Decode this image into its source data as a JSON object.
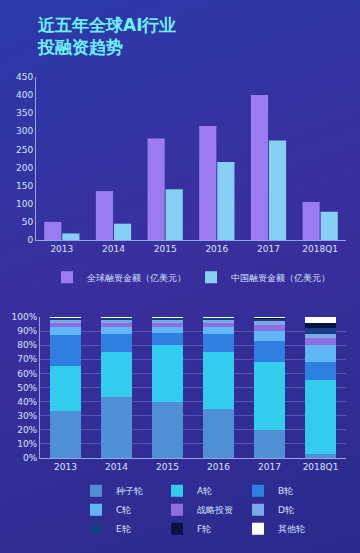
{
  "chart_data": [
    {
      "type": "bar",
      "title": "近五年全球AI行业投融资趋势",
      "categories": [
        "2013",
        "2014",
        "2015",
        "2016",
        "2017",
        "2018Q1"
      ],
      "series": [
        {
          "name": "全球融资金额（亿美元）",
          "color": "#9a7cf0",
          "values": [
            50,
            135,
            280,
            315,
            400,
            105
          ]
        },
        {
          "name": "中国融资金额（亿美元）",
          "color": "#86d0f5",
          "values": [
            18,
            45,
            140,
            215,
            275,
            78
          ]
        }
      ],
      "ylim": [
        0,
        450
      ],
      "yticks": [
        0,
        50,
        100,
        150,
        200,
        250,
        300,
        350,
        400,
        450
      ],
      "grid": false,
      "legend": "bottom"
    },
    {
      "type": "bar",
      "stacked": true,
      "categories": [
        "2013",
        "2014",
        "2015",
        "2016",
        "2017",
        "2018Q1"
      ],
      "series": [
        {
          "name": "种子轮",
          "color": "#4f8fd6",
          "values": [
            33,
            43,
            40,
            35,
            20,
            3
          ]
        },
        {
          "name": "A轮",
          "color": "#33ccee",
          "values": [
            32,
            32,
            40,
            40,
            48,
            52
          ]
        },
        {
          "name": "B轮",
          "color": "#2f7fe0",
          "values": [
            22,
            13,
            9,
            13,
            15,
            13
          ]
        },
        {
          "name": "C轮",
          "color": "#5fb8f5",
          "values": [
            6,
            5,
            4,
            5,
            7,
            12
          ]
        },
        {
          "name": "战略投资",
          "color": "#8e6fe0",
          "values": [
            3,
            3,
            3,
            3,
            4,
            5
          ]
        },
        {
          "name": "D轮",
          "color": "#7aa8e8",
          "values": [
            2,
            2,
            2,
            2,
            3,
            3
          ]
        },
        {
          "name": "E轮",
          "color": "#1a3a8a",
          "values": [
            1,
            1,
            1,
            1,
            1.5,
            4
          ]
        },
        {
          "name": "F轮",
          "color": "#0a1240",
          "values": [
            0,
            0.5,
            0.5,
            0.5,
            0.5,
            4
          ]
        },
        {
          "name": "其他轮",
          "color": "#ffffff",
          "values": [
            1,
            0.5,
            0.5,
            0.5,
            1,
            4
          ]
        }
      ],
      "ylim": [
        0,
        100
      ],
      "yticks": [
        {
          "value": 0,
          "label": "0%"
        },
        {
          "value": 10,
          "label": "10%"
        },
        {
          "value": 20,
          "label": "20%"
        },
        {
          "value": 30,
          "label": "30%"
        },
        {
          "value": 40,
          "label": "40%"
        },
        {
          "value": 50,
          "label": "50%"
        },
        {
          "value": 60,
          "label": "60%"
        },
        {
          "value": 70,
          "label": "70%"
        },
        {
          "value": 80,
          "label": "80%"
        },
        {
          "value": 90,
          "label": "90%"
        },
        {
          "value": 100,
          "label": "100%"
        }
      ],
      "grid": true,
      "legend": "bottom"
    }
  ]
}
